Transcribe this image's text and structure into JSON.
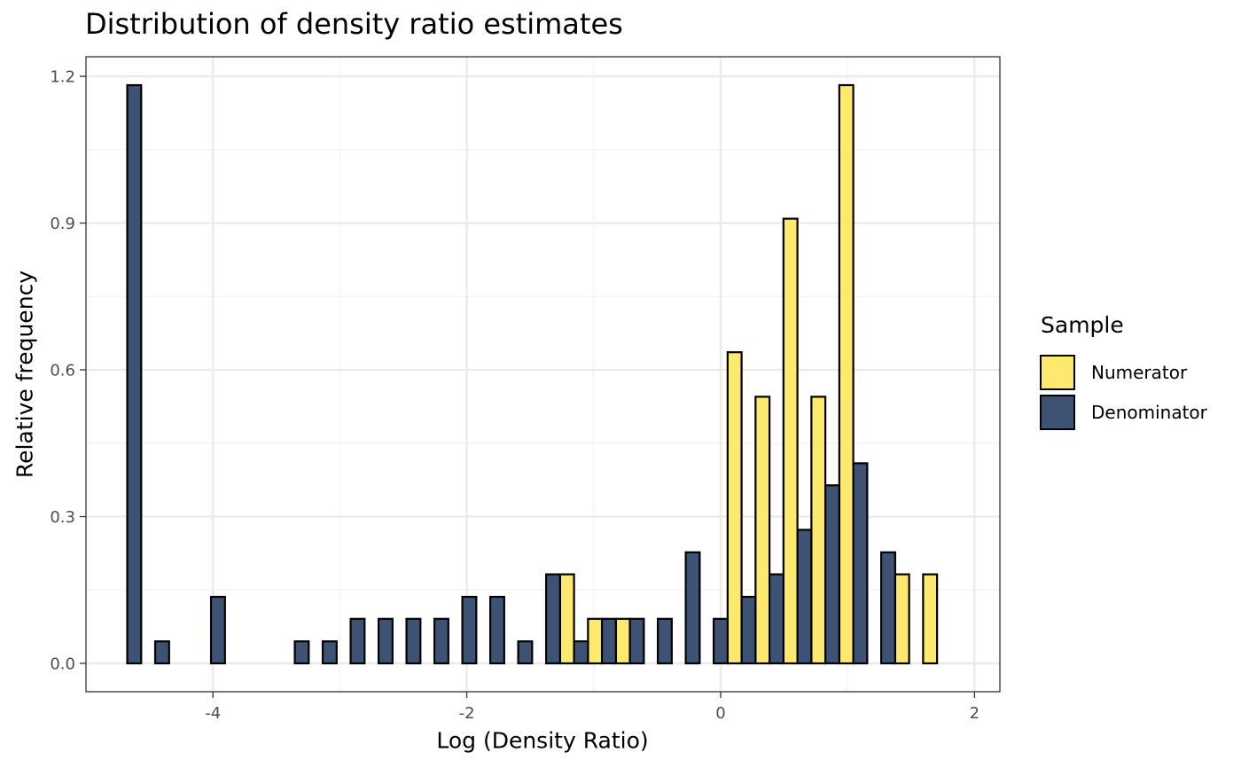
{
  "chart_data": {
    "type": "bar",
    "title": "Distribution of density ratio estimates",
    "xlabel": "Log (Density Ratio)",
    "ylabel": "Relative frequency",
    "xlim": [
      -5.0,
      2.2
    ],
    "ylim": [
      -0.058,
      1.24
    ],
    "x_ticks": [
      -4,
      -2,
      0,
      2
    ],
    "x_tick_labels": [
      "-4",
      "-2",
      "0",
      "2"
    ],
    "y_ticks": [
      0.0,
      0.3,
      0.6,
      0.9,
      1.2
    ],
    "y_tick_labels": [
      "0.0",
      "0.3",
      "0.6",
      "0.9",
      "1.2"
    ],
    "grid": true,
    "legend_position": "right",
    "legend_title": "Sample",
    "bin_width": 0.22,
    "bin_start": -4.675,
    "bin_count": 30,
    "series": [
      {
        "name": "Numerator",
        "color": "#FDE96E",
        "values": [
          0,
          0,
          0,
          0,
          0,
          0,
          0,
          0,
          0,
          0,
          0,
          0,
          0,
          0,
          0,
          0,
          0.182,
          0.091,
          0.091,
          0,
          0,
          0,
          0.636,
          0.545,
          0.909,
          0.545,
          1.182,
          0,
          0.182,
          0.182
        ]
      },
      {
        "name": "Denominator",
        "color": "#3E5373",
        "values": [
          1.182,
          0.045,
          0,
          0.136,
          0,
          0,
          0.045,
          0.045,
          0.091,
          0.091,
          0.091,
          0.091,
          0.136,
          0.136,
          0.045,
          0.182,
          0.045,
          0.091,
          0.091,
          0.091,
          0.227,
          0.091,
          0.136,
          0.182,
          0.273,
          0.364,
          0.409,
          0.227,
          0,
          0
        ]
      }
    ]
  }
}
